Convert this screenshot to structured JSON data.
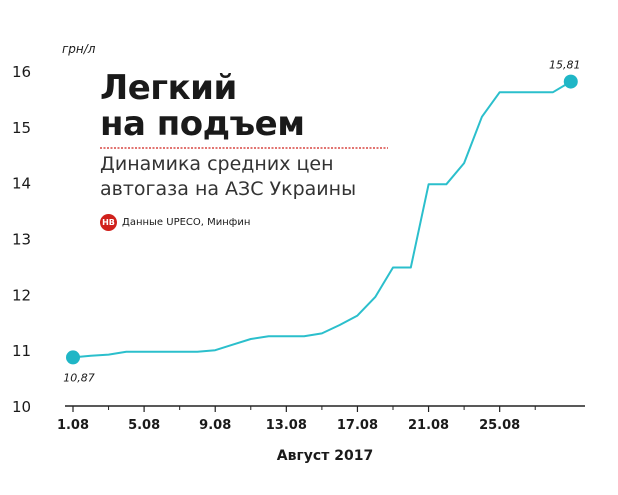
{
  "title_lines": [
    "Легкий",
    "на подъем"
  ],
  "subtitle_lines": [
    "Динамика средних цен",
    "автогаза на АЗС  Украины"
  ],
  "source": {
    "logo_text": "НВ",
    "text": "Данные UPECO, Минфин"
  },
  "colors": {
    "line": "#2bbfcc",
    "marker": "#1fb6c6",
    "axis": "#222222",
    "underline": "#d0211c",
    "logo": "#d0211c"
  },
  "chart_data": {
    "type": "line",
    "xlabel": "Август 2017",
    "ylabel": "грн/л",
    "ylim": [
      10,
      16
    ],
    "xlim": [
      1,
      29.8
    ],
    "y_ticks": [
      10,
      11,
      12,
      13,
      14,
      15,
      16
    ],
    "x_ticks": [
      1,
      5,
      9,
      13,
      17,
      21,
      25
    ],
    "x_tick_labels": [
      "1.08",
      "5.08",
      "9.08",
      "13.08",
      "17.08",
      "21.08",
      "25.08"
    ],
    "grid": false,
    "series": [
      {
        "x": [
          1,
          2,
          3,
          4,
          5,
          6,
          7,
          8,
          9,
          10,
          11,
          12,
          13,
          14,
          15,
          16,
          17,
          18,
          19,
          20,
          21,
          22,
          23,
          24,
          25,
          26,
          27,
          28,
          29
        ],
        "values": [
          10.87,
          10.9,
          10.92,
          10.97,
          10.97,
          10.97,
          10.97,
          10.97,
          11.0,
          11.1,
          11.2,
          11.25,
          11.25,
          11.25,
          11.3,
          11.45,
          11.62,
          11.95,
          12.48,
          12.48,
          13.97,
          13.97,
          14.35,
          15.18,
          15.62,
          15.62,
          15.62,
          15.62,
          15.81
        ]
      }
    ],
    "annotations": [
      {
        "x": 1,
        "y": 10.87,
        "text": "10,87"
      },
      {
        "x": 29,
        "y": 15.81,
        "text": "15,81"
      }
    ]
  }
}
